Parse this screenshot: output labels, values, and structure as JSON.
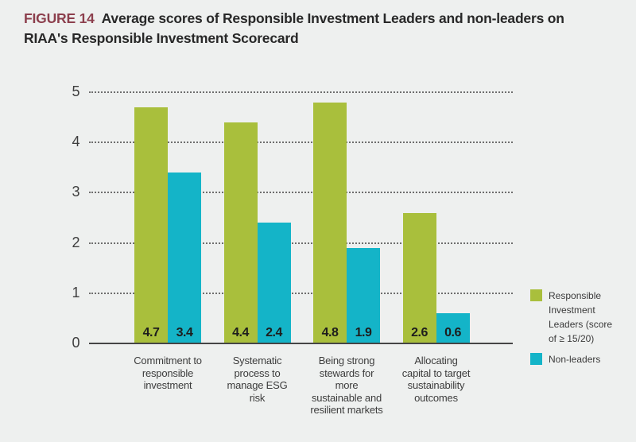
{
  "header": {
    "figure_label": "FIGURE 14",
    "title": "Average scores of Responsible Investment Leaders and non-leaders on\nRIAA's Responsible Investment Scorecard"
  },
  "chart_data": {
    "type": "bar",
    "title": "Average scores of Responsible Investment Leaders and non-leaders on RIAA's Responsible Investment Scorecard",
    "categories": [
      "Commitment to responsible investment",
      "Systematic process to manage ESG risk",
      "Being strong stewards for more sustainable and resilient markets",
      "Allocating capital to target sustainability outcomes"
    ],
    "categories_lines": [
      [
        "Commitment to",
        "responsible",
        "investment"
      ],
      [
        "Systematic",
        "process to",
        "manage ESG",
        "risk"
      ],
      [
        "Being strong",
        "stewards for",
        "more",
        "sustainable and",
        "resilient markets"
      ],
      [
        "Allocating",
        "capital to target",
        "sustainability",
        "outcomes"
      ]
    ],
    "series": [
      {
        "name": "Responsible Investment Leaders (score of ≥ 15/20)",
        "color": "#a9bf3c",
        "values": [
          4.7,
          4.4,
          4.8,
          2.6
        ]
      },
      {
        "name": "Non-leaders",
        "color": "#14b4c8",
        "values": [
          3.4,
          2.4,
          1.9,
          0.6
        ]
      }
    ],
    "value_labels": [
      "4.7",
      "3.4",
      "4.4",
      "2.4",
      "4.8",
      "1.9",
      "2.6",
      "0.6"
    ],
    "xlabel": "",
    "ylabel": "",
    "ylim": [
      0,
      5
    ],
    "yticks": [
      0,
      1,
      2,
      3,
      4,
      5
    ],
    "grid": "horizontal-dotted",
    "legend_position": "right",
    "legend": [
      {
        "label": "Responsible\nInvestment\nLeaders (score\nof ≥ 15/20)",
        "color": "#a9bf3c"
      },
      {
        "label": "Non-leaders",
        "color": "#14b4c8"
      }
    ]
  },
  "colors": {
    "background": "#eef0ef",
    "figure_label": "#8c3f4d",
    "title_text": "#282828",
    "leaders_green": "#a9bf3c",
    "nonleaders_teal": "#14b4c8",
    "axis_text": "#3e3e3e",
    "gridline": "#6e6e6e"
  }
}
